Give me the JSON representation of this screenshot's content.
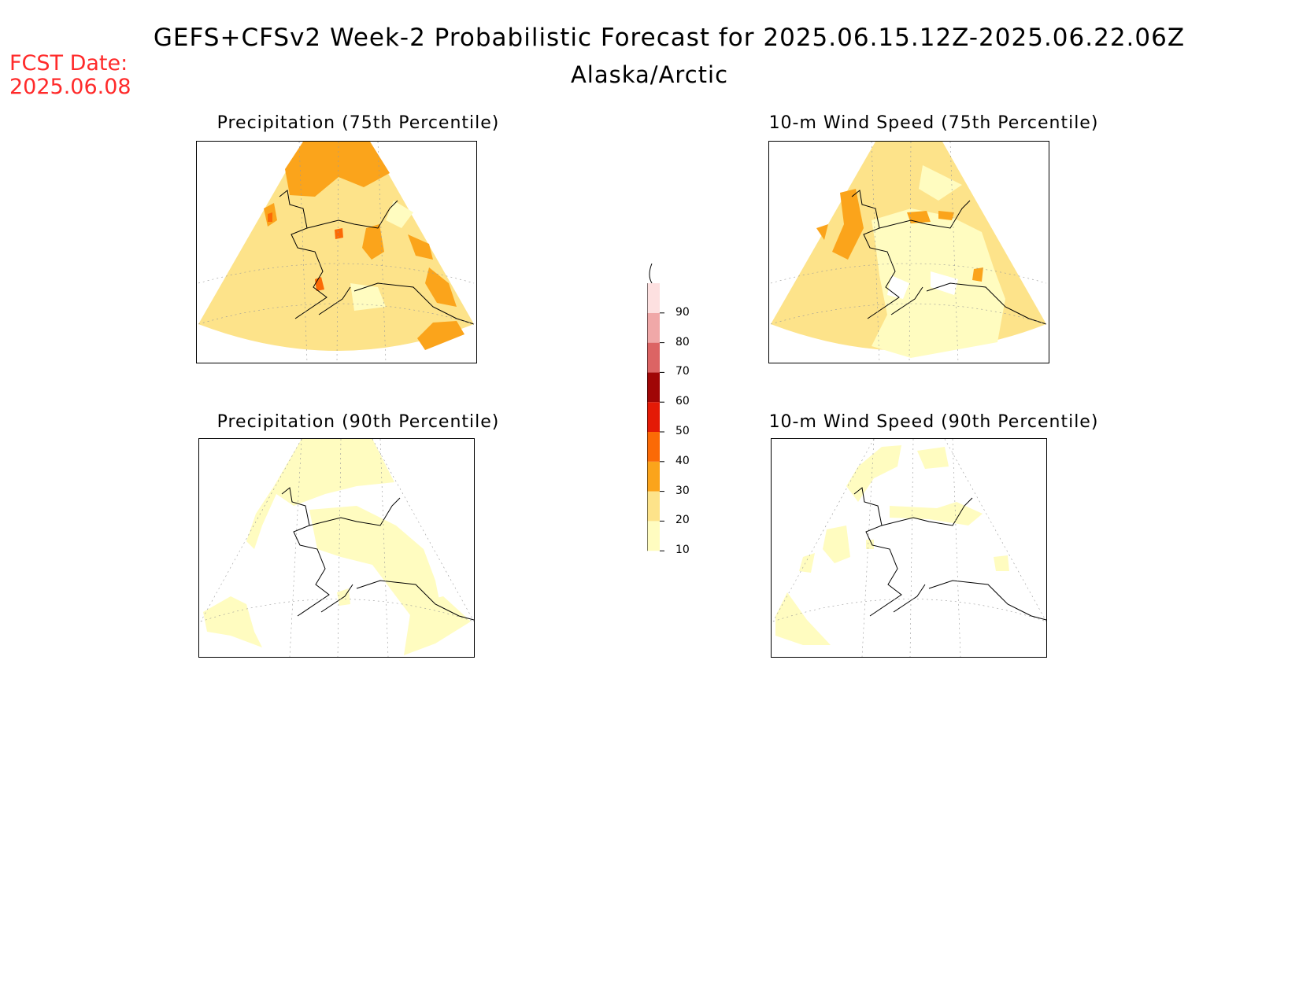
{
  "header": {
    "title": "GEFS+CFSv2 Week-2 Probabilistic Forecast for 2025.06.15.12Z-2025.06.22.06Z",
    "subtitle": "Alaska/Arctic",
    "fcst_label": "FCST Date:",
    "fcst_date": "2025.06.08"
  },
  "panels": [
    {
      "id": "precip75",
      "title": "Precipitation (75th Percentile)"
    },
    {
      "id": "wind75",
      "title": "10-m Wind Speed (75th Percentile)"
    },
    {
      "id": "precip90",
      "title": "Precipitation (90th Percentile)"
    },
    {
      "id": "wind90",
      "title": "10-m Wind Speed (90th Percentile)"
    }
  ],
  "legend": {
    "levels": [
      "10",
      "20",
      "30",
      "40",
      "50",
      "60",
      "70",
      "80",
      "90"
    ],
    "colors": [
      "#fffcc0",
      "#fde38a",
      "#fba41b",
      "#fb6a06",
      "#e41a06",
      "#a00606",
      "#dc6464",
      "#f0a8a8",
      "#fde0e0"
    ]
  },
  "colors": {
    "c10": "#fffcc0",
    "c20": "#fde38a",
    "c30": "#fba41b",
    "c40": "#fb6a06",
    "fcst": "#ff2a2a"
  }
}
